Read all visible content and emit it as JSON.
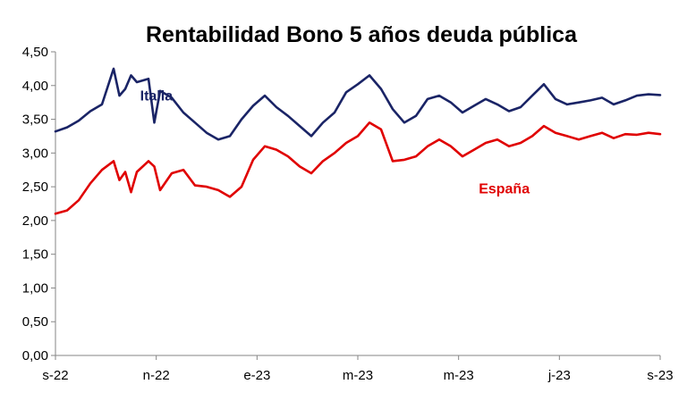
{
  "chart_data": {
    "type": "line",
    "title": "Rentabilidad Bono 5 años deuda pública",
    "xlabel": "",
    "ylabel": "",
    "ylim": [
      0,
      4.5
    ],
    "yticks": [
      "0,00",
      "0,50",
      "1,00",
      "1,50",
      "2,00",
      "2,50",
      "3,00",
      "3,50",
      "4,00",
      "4,50"
    ],
    "xticks": [
      "s-22",
      "n-22",
      "e-23",
      "m-23",
      "m-23",
      "j-23",
      "s-23"
    ],
    "xlim": [
      0,
      52
    ],
    "grid": false,
    "legend": "none (series labelled directly on the chart)",
    "series": [
      {
        "name": "Italia",
        "color": "#1a2466",
        "x": [
          0,
          1,
          2,
          3,
          4,
          5,
          5.5,
          6,
          6.5,
          7,
          8,
          8.5,
          9,
          10,
          11,
          12,
          13,
          14,
          15,
          16,
          17,
          18,
          19,
          20,
          21,
          22,
          23,
          24,
          25,
          26,
          27,
          28,
          29,
          30,
          31,
          32,
          33,
          34,
          35,
          36,
          37,
          38,
          39,
          40,
          41,
          42,
          43,
          44,
          45,
          46,
          47,
          48,
          49,
          50,
          51,
          52
        ],
        "y": [
          3.32,
          3.38,
          3.48,
          3.62,
          3.72,
          4.25,
          3.85,
          3.95,
          4.15,
          4.05,
          4.1,
          3.45,
          3.92,
          3.82,
          3.6,
          3.45,
          3.3,
          3.2,
          3.25,
          3.5,
          3.7,
          3.85,
          3.68,
          3.55,
          3.4,
          3.25,
          3.45,
          3.6,
          3.9,
          4.02,
          4.15,
          3.95,
          3.65,
          3.45,
          3.55,
          3.8,
          3.85,
          3.75,
          3.6,
          3.7,
          3.8,
          3.72,
          3.62,
          3.68,
          3.85,
          4.02,
          3.8,
          3.72,
          3.75,
          3.78,
          3.82,
          3.72,
          3.78,
          3.85,
          3.87,
          3.86
        ]
      },
      {
        "name": "España",
        "color": "#e00000",
        "x": [
          0,
          1,
          2,
          3,
          4,
          5,
          5.5,
          6,
          6.5,
          7,
          8,
          8.5,
          9,
          10,
          11,
          12,
          13,
          14,
          15,
          16,
          17,
          18,
          19,
          20,
          21,
          22,
          23,
          24,
          25,
          26,
          27,
          28,
          29,
          30,
          31,
          32,
          33,
          34,
          35,
          36,
          37,
          38,
          39,
          40,
          41,
          42,
          43,
          44,
          45,
          46,
          47,
          48,
          49,
          50,
          51,
          52
        ],
        "y": [
          2.1,
          2.15,
          2.3,
          2.55,
          2.75,
          2.88,
          2.6,
          2.72,
          2.42,
          2.72,
          2.88,
          2.8,
          2.45,
          2.7,
          2.75,
          2.52,
          2.5,
          2.45,
          2.35,
          2.5,
          2.9,
          3.1,
          3.05,
          2.95,
          2.8,
          2.7,
          2.88,
          3.0,
          3.15,
          3.25,
          3.45,
          3.35,
          2.88,
          2.9,
          2.95,
          3.1,
          3.2,
          3.1,
          2.95,
          3.05,
          3.15,
          3.2,
          3.1,
          3.15,
          3.25,
          3.4,
          3.3,
          3.25,
          3.2,
          3.25,
          3.3,
          3.22,
          3.28,
          3.27,
          3.3,
          3.28
        ]
      }
    ]
  }
}
